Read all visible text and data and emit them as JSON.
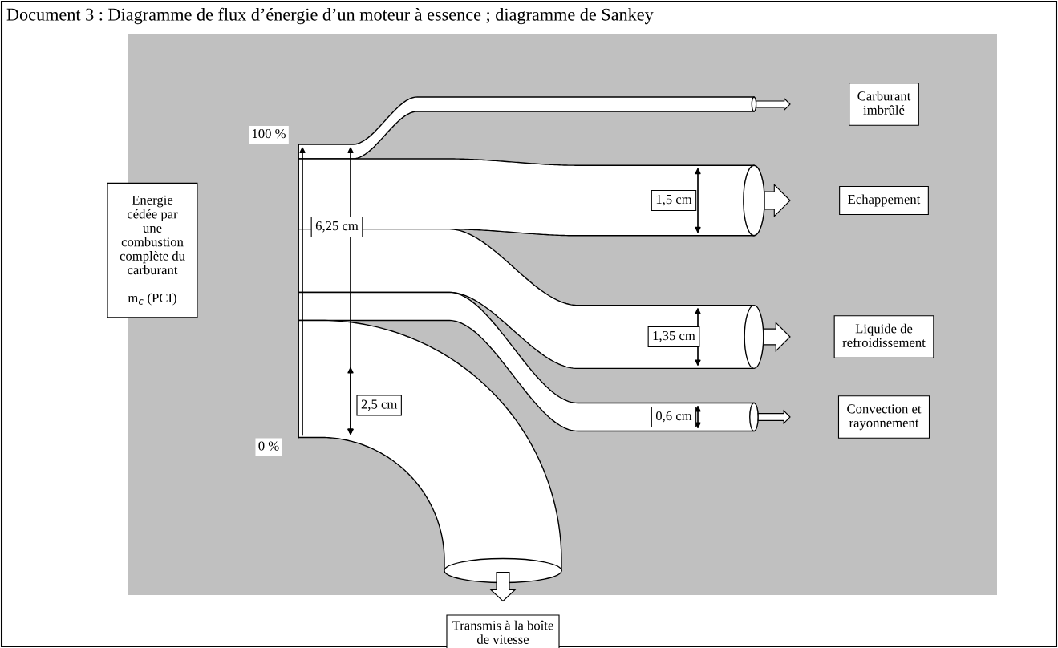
{
  "chart_data": {
    "type": "other",
    "title": "Document 3 : Diagramme de flux d’énergie d’un moteur à essence ; diagramme de Sankey",
    "categories": [
      "Carburant\nimbrûlé",
      "Echappement",
      "Liquide de\nrefroidissement",
      "Convection et\nrayonnement",
      "Transmis à la boîte\nde vitesse"
    ],
    "values": [
      null,
      1.5,
      1.35,
      0.6,
      2.5
    ],
    "value_labels": [
      null,
      "1,5 cm",
      "1,35 cm",
      "0,6 cm",
      "2,5 cm"
    ],
    "annotations": [
      "Energie\ncédée par\nune\ncombustion\ncomplète du\ncarburant\n\nm$_{c}$ (PCI)",
      "100 %",
      "0 %",
      "6,25 cm"
    ]
  }
}
